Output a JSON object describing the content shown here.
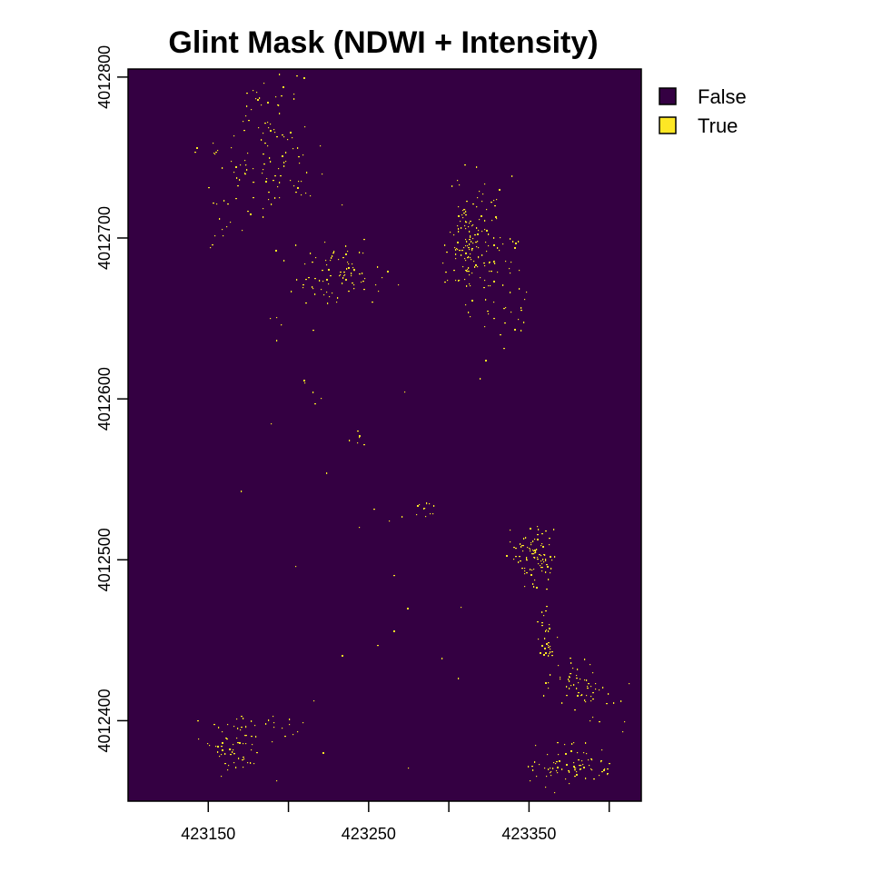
{
  "chart_data": {
    "type": "heatmap",
    "title": "Glint Mask (NDWI + Intensity)",
    "xlabel": "",
    "ylabel": "",
    "xlim": [
      423100,
      423420
    ],
    "ylim": [
      4012350,
      4012805
    ],
    "x_ticks": [
      {
        "value": 423150,
        "label": "423150"
      },
      {
        "value": 423200,
        "label": ""
      },
      {
        "value": 423250,
        "label": "423250"
      },
      {
        "value": 423300,
        "label": ""
      },
      {
        "value": 423350,
        "label": "423350"
      },
      {
        "value": 423400,
        "label": ""
      }
    ],
    "y_ticks": [
      {
        "value": 4012800,
        "label": "4012800"
      },
      {
        "value": 4012700,
        "label": "4012700"
      },
      {
        "value": 4012600,
        "label": "4012600"
      },
      {
        "value": 4012500,
        "label": "4012500"
      },
      {
        "value": 4012400,
        "label": "4012400"
      }
    ],
    "classes": [
      {
        "label": "False",
        "color": "#340042"
      },
      {
        "label": "True",
        "color": "#fde725"
      }
    ],
    "legend_position": "top-right",
    "grid": false,
    "true_clusters": [
      {
        "x": 423188,
        "y": 4012760,
        "sx": 14,
        "sy": 25,
        "n": 95
      },
      {
        "x": 423179,
        "y": 4012793,
        "sx": 3,
        "sy": 5,
        "n": 6
      },
      {
        "x": 423155,
        "y": 4012755,
        "sx": 10,
        "sy": 8,
        "n": 8
      },
      {
        "x": 423163,
        "y": 4012708,
        "sx": 10,
        "sy": 12,
        "n": 12
      },
      {
        "x": 423185,
        "y": 4012738,
        "sx": 22,
        "sy": 18,
        "n": 20
      },
      {
        "x": 423230,
        "y": 4012678,
        "sx": 14,
        "sy": 9,
        "n": 85
      },
      {
        "x": 423312,
        "y": 4012695,
        "sx": 6,
        "sy": 17,
        "n": 130
      },
      {
        "x": 423330,
        "y": 4012690,
        "sx": 7,
        "sy": 22,
        "n": 45
      },
      {
        "x": 423338,
        "y": 4012655,
        "sx": 6,
        "sy": 20,
        "n": 18
      },
      {
        "x": 423192,
        "y": 4012645,
        "sx": 8,
        "sy": 8,
        "n": 5
      },
      {
        "x": 423212,
        "y": 4012605,
        "sx": 6,
        "sy": 10,
        "n": 5
      },
      {
        "x": 423245,
        "y": 4012575,
        "sx": 4,
        "sy": 2,
        "n": 6
      },
      {
        "x": 423285,
        "y": 4012530,
        "sx": 4,
        "sy": 3,
        "n": 12
      },
      {
        "x": 423355,
        "y": 4012503,
        "sx": 5,
        "sy": 8,
        "n": 75
      },
      {
        "x": 423343,
        "y": 4012505,
        "sx": 5,
        "sy": 7,
        "n": 18
      },
      {
        "x": 423360,
        "y": 4012455,
        "sx": 3,
        "sy": 12,
        "n": 28
      },
      {
        "x": 423379,
        "y": 4012425,
        "sx": 8,
        "sy": 8,
        "n": 45
      },
      {
        "x": 423393,
        "y": 4012410,
        "sx": 9,
        "sy": 15,
        "n": 22
      },
      {
        "x": 423375,
        "y": 4012372,
        "sx": 15,
        "sy": 6,
        "n": 75
      },
      {
        "x": 423165,
        "y": 4012388,
        "sx": 9,
        "sy": 8,
        "n": 55
      },
      {
        "x": 423190,
        "y": 4012398,
        "sx": 10,
        "sy": 4,
        "n": 12
      },
      {
        "x": 423170,
        "y": 4012373,
        "sx": 4,
        "sy": 2,
        "n": 10
      },
      {
        "x": 423260,
        "y": 4012500,
        "sx": 60,
        "sy": 130,
        "n": 40
      }
    ]
  }
}
